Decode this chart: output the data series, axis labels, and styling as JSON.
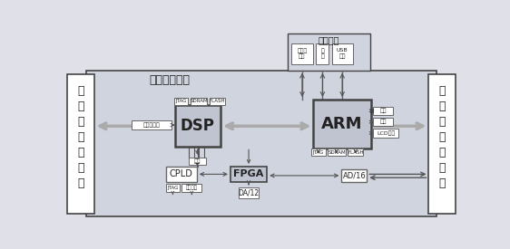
{
  "bg_color": "#e0e0e8",
  "hji_bg": "#d0d4de",
  "white": "#ffffff",
  "gray_box": "#c0c4d0",
  "line_color": "#666666",
  "dark_line": "#444444",
  "text_color": "#222222",
  "title_hji": "人机交互模块",
  "title_comm": "通信模块",
  "left_chars": [
    "简",
    "谐",
    "波",
    "发",
    "送",
    "模",
    "块"
  ],
  "right_chars": [
    "简",
    "谐",
    "波",
    "接",
    "收",
    "模",
    "块"
  ],
  "dsp_label": "DSP",
  "arm_label": "ARM",
  "fpga_label": "FPGA",
  "cpld_label": "CPLD",
  "ad16_label": "AD/16",
  "da12_label": "DA/12",
  "auto_label": "自动频选择",
  "power_label": "电源",
  "jtag_label": "JTAG",
  "sdram_label": "SDRAM",
  "flash_label": "FLASH",
  "keyboard_label": "键盘",
  "lcd_label": "LCD显示",
  "cap_label": "旁路电容",
  "eth_label": "以太网\n接口",
  "serial_label": "串\n口",
  "usb_label": "USB\n接口"
}
